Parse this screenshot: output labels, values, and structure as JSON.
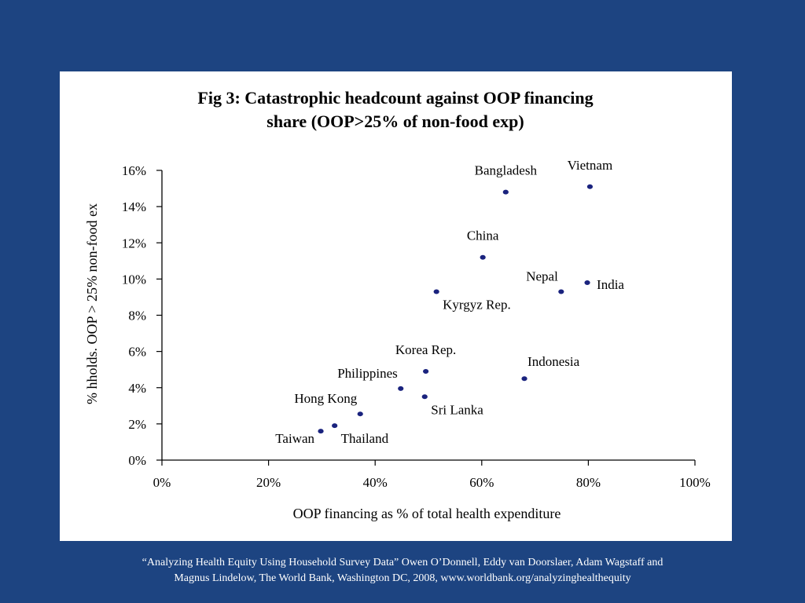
{
  "caption": {
    "line1": "“Analyzing Health Equity Using Household Survey Data” Owen O’Donnell, Eddy van Doorslaer, Adam Wagstaff and",
    "line2": "Magnus Lindelow, The World Bank, Washington DC, 2008, www.worldbank.org/analyzinghealthequity"
  },
  "colors": {
    "background": "#1d4481",
    "panel": "#ffffff",
    "marker": "#1a237e"
  },
  "chart_data": {
    "type": "scatter",
    "title": "Fig 3: Catastrophic headcount against OOP financing share (OOP>25% of non-food exp)",
    "title_lines": [
      "Fig 3: Catastrophic headcount against OOP financing",
      "share (OOP>25% of non-food exp)"
    ],
    "xlabel": "OOP financing as % of total health expenditure",
    "ylabel": "% hholds. OOP > 25% non-food ex",
    "xlim": [
      0,
      100
    ],
    "ylim": [
      0,
      16
    ],
    "x_ticks": [
      "0%",
      "20%",
      "40%",
      "60%",
      "80%",
      "100%"
    ],
    "y_ticks": [
      "0%",
      "2%",
      "4%",
      "6%",
      "8%",
      "10%",
      "12%",
      "14%",
      "16%"
    ],
    "grid": false,
    "legend": "none",
    "points": [
      {
        "label": "Bangladesh",
        "x": 64.5,
        "y": 14.8,
        "label_pos": "above"
      },
      {
        "label": "Vietnam",
        "x": 80.3,
        "y": 15.1,
        "label_pos": "above"
      },
      {
        "label": "China",
        "x": 60.2,
        "y": 11.2,
        "label_pos": "above"
      },
      {
        "label": "Nepal",
        "x": 74.9,
        "y": 9.3,
        "label_pos": "above-left"
      },
      {
        "label": "India",
        "x": 79.8,
        "y": 9.8,
        "label_pos": "right"
      },
      {
        "label": "Kyrgyz Rep.",
        "x": 51.5,
        "y": 9.3,
        "label_pos": "below-right"
      },
      {
        "label": "Korea Rep.",
        "x": 49.5,
        "y": 4.9,
        "label_pos": "above"
      },
      {
        "label": "Indonesia",
        "x": 68.0,
        "y": 4.5,
        "label_pos": "above-right"
      },
      {
        "label": "Philippines",
        "x": 44.8,
        "y": 3.95,
        "label_pos": "above-left"
      },
      {
        "label": "Sri Lanka",
        "x": 49.3,
        "y": 3.5,
        "label_pos": "below-right"
      },
      {
        "label": "Hong Kong",
        "x": 37.2,
        "y": 2.55,
        "label_pos": "above-left"
      },
      {
        "label": "Thailand",
        "x": 32.4,
        "y": 1.9,
        "label_pos": "below-right"
      },
      {
        "label": "Taiwan",
        "x": 29.8,
        "y": 1.6,
        "label_pos": "left"
      }
    ]
  }
}
